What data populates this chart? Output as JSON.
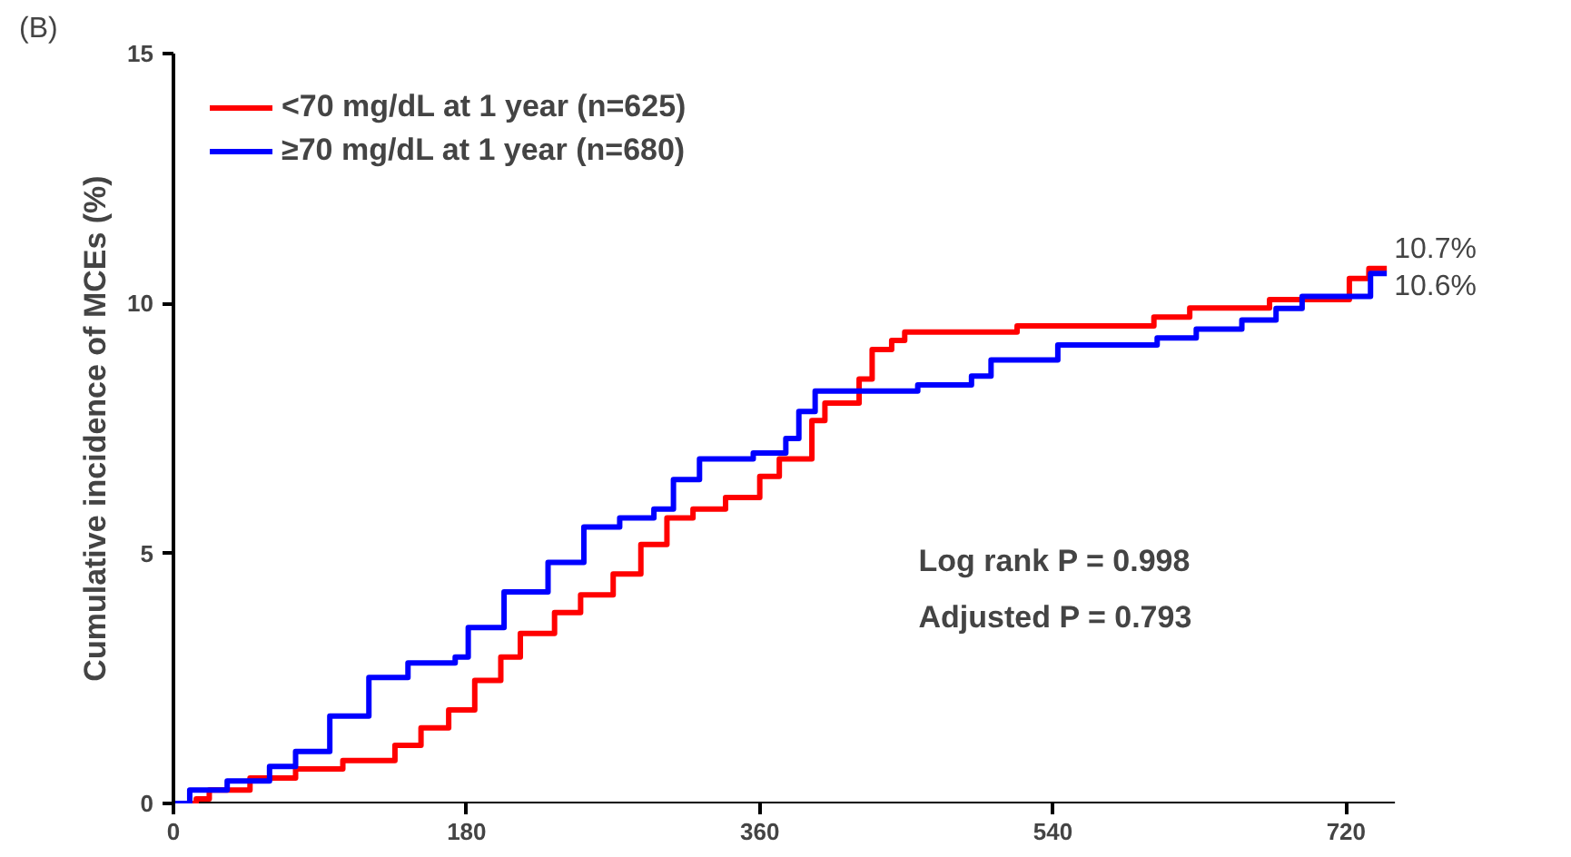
{
  "chart_data": {
    "type": "step",
    "ylabel": "Cumulative incidence of MCEs (%)",
    "xlim": [
      0,
      750
    ],
    "ylim": [
      0,
      15
    ],
    "xticks": [
      0,
      180,
      360,
      540,
      720
    ],
    "yticks": [
      0,
      5,
      10,
      15
    ],
    "grid": false,
    "legend": "top left",
    "marker": "none",
    "line_style": "solid",
    "series": [
      {
        "name": "<70 mg/dL at 1 year (n=625)",
        "color": "#ff0000",
        "x": [
          0,
          14,
          22,
          47,
          75,
          104,
          136,
          152,
          169,
          185,
          201,
          213,
          234,
          250,
          270,
          287,
          303,
          319,
          339,
          360,
          372,
          392,
          400,
          421,
          429,
          441,
          449,
          518,
          602,
          624,
          673,
          722,
          734,
          745
        ],
        "values": [
          0,
          0.09,
          0.27,
          0.51,
          0.69,
          0.86,
          1.16,
          1.51,
          1.87,
          2.46,
          2.93,
          3.4,
          3.82,
          4.17,
          4.59,
          5.18,
          5.71,
          5.89,
          6.12,
          6.54,
          6.89,
          7.66,
          8.01,
          8.49,
          9.08,
          9.26,
          9.43,
          9.55,
          9.73,
          9.91,
          10.08,
          10.5,
          10.7,
          10.7
        ]
      },
      {
        "name": "≥70 mg/dL at 1 year (n=680)",
        "color": "#0000ff",
        "x": [
          0,
          10,
          33,
          59,
          75,
          96,
          120,
          144,
          173,
          181,
          203,
          230,
          252,
          274,
          295,
          307,
          323,
          356,
          376,
          384,
          394,
          457,
          490,
          502,
          543,
          604,
          628,
          656,
          677,
          693,
          735,
          745
        ],
        "values": [
          0,
          0.27,
          0.45,
          0.74,
          1.04,
          1.75,
          2.52,
          2.81,
          2.93,
          3.52,
          4.23,
          4.82,
          5.53,
          5.71,
          5.89,
          6.48,
          6.89,
          7.01,
          7.3,
          7.84,
          8.25,
          8.37,
          8.55,
          8.87,
          9.17,
          9.31,
          9.49,
          9.67,
          9.9,
          10.14,
          10.6,
          10.6
        ]
      }
    ],
    "annotations": [
      "(B)",
      {
        "text": "10.7%",
        "x": 745,
        "y": 10.7
      },
      {
        "text": "10.6%",
        "x": 745,
        "y": 10.6
      },
      "Log rank P = 0.998",
      "Adjusted P = 0.793"
    ]
  }
}
